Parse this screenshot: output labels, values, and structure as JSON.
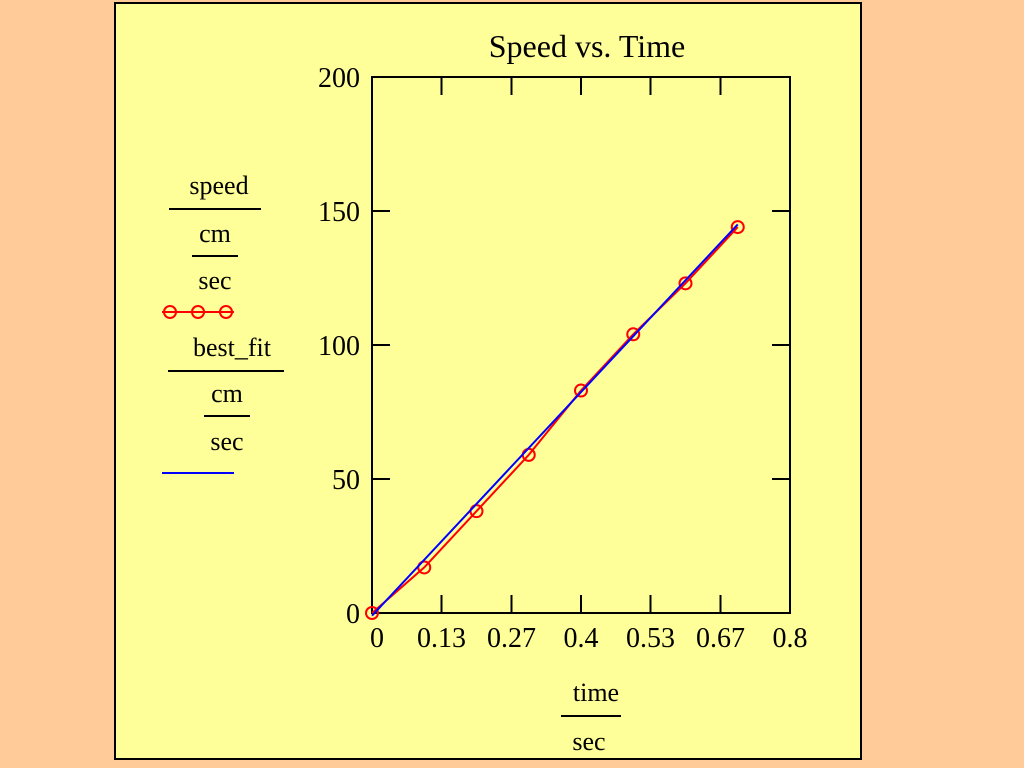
{
  "colors": {
    "background": "#FFCC99",
    "panel": "#FFFF99",
    "speed_series": "#FF0000",
    "fit_series": "#0000FF",
    "axis": "#000000"
  },
  "chart_data": {
    "type": "line",
    "title": "Speed vs. Time",
    "xlabel": {
      "top": "time",
      "bottom": "sec"
    },
    "ylabel": [
      {
        "top": "speed",
        "unit_top": "cm",
        "unit_bottom": "sec",
        "style": "line-with-circle-markers",
        "color": "#FF0000"
      },
      {
        "top": "best_fit",
        "unit_top": "cm",
        "unit_bottom": "sec",
        "style": "line",
        "color": "#0000FF"
      }
    ],
    "xlim": [
      0,
      0.8
    ],
    "ylim": [
      0,
      200
    ],
    "x_ticks": [
      0,
      0.133,
      0.267,
      0.4,
      0.533,
      0.667,
      0.8
    ],
    "x_tick_labels": [
      "0",
      "0.13",
      "0.27",
      "0.4",
      "0.53",
      "0.67",
      "0.8"
    ],
    "y_ticks": [
      0,
      50,
      100,
      150,
      200
    ],
    "y_tick_labels": [
      "0",
      "50",
      "100",
      "150",
      "200"
    ],
    "grid": false,
    "series": [
      {
        "marker": "circle",
        "x": [
          0,
          0.1,
          0.2,
          0.3,
          0.4,
          0.5,
          0.6,
          0.7
        ],
        "y": [
          0,
          17,
          38,
          59,
          83,
          104,
          123,
          144
        ]
      },
      {
        "marker": "none",
        "x": [
          0,
          0.7
        ],
        "y": [
          -1,
          145
        ]
      }
    ]
  }
}
